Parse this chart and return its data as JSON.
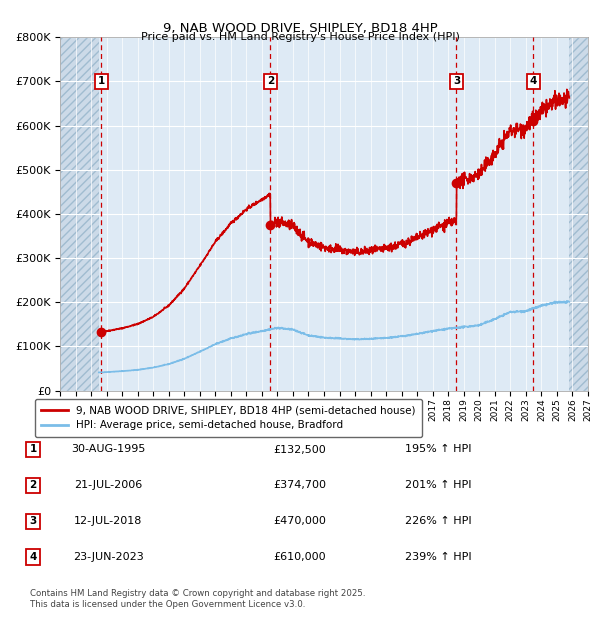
{
  "title": "9, NAB WOOD DRIVE, SHIPLEY, BD18 4HP",
  "subtitle": "Price paid vs. HM Land Registry's House Price Index (HPI)",
  "footer_line1": "Contains HM Land Registry data © Crown copyright and database right 2025.",
  "footer_line2": "This data is licensed under the Open Government Licence v3.0.",
  "legend_line1": "9, NAB WOOD DRIVE, SHIPLEY, BD18 4HP (semi-detached house)",
  "legend_line2": "HPI: Average price, semi-detached house, Bradford",
  "sales": [
    {
      "num": 1,
      "date": "30-AUG-1995",
      "year": 1995.66,
      "price": 132500,
      "pct": "195%",
      "dir": "↑"
    },
    {
      "num": 2,
      "date": "21-JUL-2006",
      "year": 2006.55,
      "price": 374700,
      "pct": "201%",
      "dir": "↑"
    },
    {
      "num": 3,
      "date": "12-JUL-2018",
      "year": 2018.53,
      "price": 470000,
      "pct": "226%",
      "dir": "↑"
    },
    {
      "num": 4,
      "date": "23-JUN-2023",
      "year": 2023.48,
      "price": 610000,
      "pct": "239%",
      "dir": "↑"
    }
  ],
  "hpi_color": "#7bbde8",
  "price_color": "#cc0000",
  "marker_color": "#cc0000",
  "dashed_color": "#cc0000",
  "hatch_color": "#ccdae8",
  "plot_bg": "#deeaf5",
  "grid_color": "#ffffff",
  "ylim": [
    0,
    800000
  ],
  "ytick_step": 100000,
  "xlim_start": 1993,
  "xlim_end": 2027,
  "data_start": 1995.5,
  "data_end": 2025.8,
  "hpi_years": [
    1993,
    1994,
    1995,
    1996,
    1997,
    1998,
    1999,
    2000,
    2001,
    2002,
    2003,
    2004,
    2005,
    2006,
    2007,
    2008,
    2009,
    2010,
    2011,
    2012,
    2013,
    2014,
    2015,
    2016,
    2017,
    2018,
    2019,
    2020,
    2021,
    2022,
    2023,
    2024,
    2025
  ],
  "hpi_vals": [
    38000,
    39000,
    40000,
    42000,
    44000,
    47000,
    52000,
    60000,
    72000,
    88000,
    105000,
    118000,
    128000,
    135000,
    142000,
    138000,
    125000,
    120000,
    118000,
    116000,
    117000,
    119000,
    123000,
    128000,
    135000,
    140000,
    144000,
    148000,
    162000,
    178000,
    180000,
    192000,
    200000
  ]
}
